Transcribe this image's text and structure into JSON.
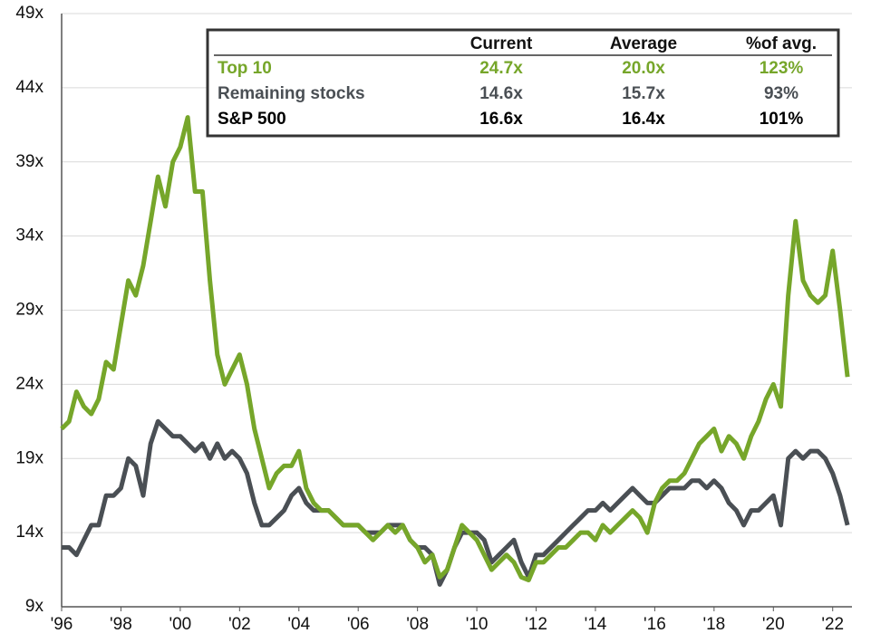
{
  "chart_data": {
    "type": "line",
    "x": [
      1996,
      1996.25,
      1996.5,
      1996.75,
      1997,
      1997.25,
      1997.5,
      1997.75,
      1998,
      1998.25,
      1998.5,
      1998.75,
      1999,
      1999.25,
      1999.5,
      1999.75,
      2000,
      2000.25,
      2000.5,
      2000.75,
      2001,
      2001.25,
      2001.5,
      2001.75,
      2002,
      2002.25,
      2002.5,
      2002.75,
      2003,
      2003.25,
      2003.5,
      2003.75,
      2004,
      2004.25,
      2004.5,
      2004.75,
      2005,
      2005.25,
      2005.5,
      2005.75,
      2006,
      2006.25,
      2006.5,
      2006.75,
      2007,
      2007.25,
      2007.5,
      2007.75,
      2008,
      2008.25,
      2008.5,
      2008.75,
      2009,
      2009.25,
      2009.5,
      2009.75,
      2010,
      2010.25,
      2010.5,
      2010.75,
      2011,
      2011.25,
      2011.5,
      2011.75,
      2012,
      2012.25,
      2012.5,
      2012.75,
      2013,
      2013.25,
      2013.5,
      2013.75,
      2014,
      2014.25,
      2014.5,
      2014.75,
      2015,
      2015.25,
      2015.5,
      2015.75,
      2016,
      2016.25,
      2016.5,
      2016.75,
      2017,
      2017.25,
      2017.5,
      2017.75,
      2018,
      2018.25,
      2018.5,
      2018.75,
      2019,
      2019.25,
      2019.5,
      2019.75,
      2020,
      2020.25,
      2020.5,
      2020.75,
      2021,
      2021.25,
      2021.5,
      2021.75,
      2022,
      2022.25,
      2022.5
    ],
    "series": [
      {
        "name": "Top 10",
        "color": "#76a62a",
        "values": [
          21,
          21.5,
          23.5,
          22.5,
          22,
          23,
          25.5,
          25,
          28,
          31,
          30,
          32,
          35,
          38,
          36,
          39,
          40,
          42,
          37,
          37,
          31,
          26,
          24,
          25,
          26,
          24,
          21,
          19,
          17,
          18,
          18.5,
          18.5,
          19.5,
          17,
          16,
          15.5,
          15.5,
          15,
          14.5,
          14.5,
          14.5,
          14,
          13.5,
          14,
          14.5,
          14,
          14.5,
          13.5,
          13,
          12,
          12.5,
          11,
          11.5,
          13,
          14.5,
          14,
          13.5,
          12.5,
          11.5,
          12,
          12.5,
          12,
          11,
          10.8,
          12,
          12,
          12.5,
          13,
          13,
          13.5,
          14,
          14,
          13.5,
          14.5,
          14,
          14.5,
          15,
          15.5,
          15,
          14,
          16,
          17,
          17.5,
          17.5,
          18,
          19,
          20,
          20.5,
          21,
          19.5,
          20.5,
          20,
          19,
          20.5,
          21.5,
          23,
          24,
          22.5,
          30,
          35,
          31,
          30,
          29.5,
          30,
          33,
          29,
          24.5
        ]
      },
      {
        "name": "Remaining stocks",
        "color": "#4a4f54",
        "values": [
          13,
          13,
          12.5,
          13.5,
          14.5,
          14.5,
          16.5,
          16.5,
          17,
          19,
          18.5,
          16.5,
          20,
          21.5,
          21,
          20.5,
          20.5,
          20,
          19.5,
          20,
          19,
          20,
          19,
          19.5,
          19,
          18,
          16,
          14.5,
          14.5,
          15,
          15.5,
          16.5,
          17,
          16,
          15.5,
          15.5,
          15.5,
          15,
          14.5,
          14.5,
          14.5,
          14,
          14,
          14,
          14.5,
          14.5,
          14.5,
          13.5,
          13,
          13,
          12.5,
          10.5,
          11.5,
          13,
          14,
          14,
          14,
          13.5,
          12,
          12.5,
          13,
          13.5,
          12,
          11,
          12.5,
          12.5,
          13,
          13.5,
          14,
          14.5,
          15,
          15.5,
          15.5,
          16,
          15.5,
          16,
          16.5,
          17,
          16.5,
          16,
          16,
          16.5,
          17,
          17,
          17,
          17.5,
          17.5,
          17,
          17.5,
          17,
          16,
          15.5,
          14.5,
          15.5,
          15.5,
          16,
          16.5,
          14.5,
          19,
          19.5,
          19,
          19.5,
          19.5,
          19,
          18,
          16.5,
          14.5
        ]
      }
    ],
    "xlim": [
      1996,
      2022.65
    ],
    "xticks": [
      {
        "value": 1996,
        "label": "'96"
      },
      {
        "value": 1998,
        "label": "'98"
      },
      {
        "value": 2000,
        "label": "'00"
      },
      {
        "value": 2002,
        "label": "'02"
      },
      {
        "value": 2004,
        "label": "'04"
      },
      {
        "value": 2006,
        "label": "'06"
      },
      {
        "value": 2008,
        "label": "'08"
      },
      {
        "value": 2010,
        "label": "'10"
      },
      {
        "value": 2012,
        "label": "'12"
      },
      {
        "value": 2014,
        "label": "'14"
      },
      {
        "value": 2016,
        "label": "'16"
      },
      {
        "value": 2018,
        "label": "'18"
      },
      {
        "value": 2020,
        "label": "'20"
      },
      {
        "value": 2022,
        "label": "'22"
      }
    ],
    "ylim": [
      9,
      49
    ],
    "yticks": [
      {
        "value": 9,
        "label": "9x"
      },
      {
        "value": 14,
        "label": "14x"
      },
      {
        "value": 19,
        "label": "19x"
      },
      {
        "value": 24,
        "label": "24x"
      },
      {
        "value": 29,
        "label": "29x"
      },
      {
        "value": 34,
        "label": "34x"
      },
      {
        "value": 39,
        "label": "39x"
      },
      {
        "value": 44,
        "label": "44x"
      },
      {
        "value": 49,
        "label": "49x"
      }
    ],
    "grid": true,
    "table": {
      "columns": [
        "Current",
        "Average",
        "%of avg."
      ],
      "rows": [
        {
          "label": "Top 10",
          "color": "#76a62a",
          "cells": [
            "24.7x",
            "20.0x",
            "123%"
          ]
        },
        {
          "label": "Remaining stocks",
          "color": "#4a4f54",
          "cells": [
            "14.6x",
            "15.7x",
            "93%"
          ]
        },
        {
          "label": "S&P 500",
          "color": "#000000",
          "cells": [
            "16.6x",
            "16.4x",
            "101%"
          ]
        }
      ]
    }
  }
}
